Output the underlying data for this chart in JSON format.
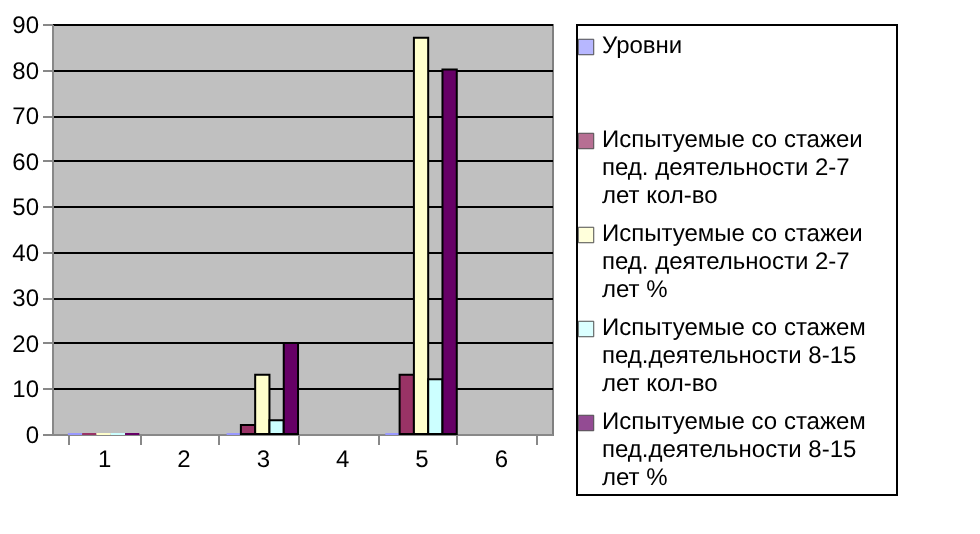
{
  "chart_data": {
    "type": "bar",
    "categories": [
      "1",
      "2",
      "3",
      "4",
      "5",
      "6"
    ],
    "series": [
      {
        "name": "Уровни",
        "color": "#9999ff",
        "values": [
          0,
          null,
          0,
          null,
          0,
          null
        ]
      },
      {
        "name": "Испытуемые со стажеи пед. деятельности 2-7 лет кол-во",
        "color": "#993366",
        "values": [
          0,
          null,
          2,
          null,
          13,
          null
        ]
      },
      {
        "name": "Испытуемые со стажеи пед. деятельности 2-7 лет %",
        "color": "#ffffcc",
        "values": [
          0,
          null,
          13,
          null,
          87,
          null
        ]
      },
      {
        "name": "Испытуемые со стажем пед.деятельности 8-15 лет кол-во",
        "color": "#ccffff",
        "values": [
          0,
          null,
          3,
          null,
          12,
          null
        ]
      },
      {
        "name": "Испытуемые со стажем пед.деятельности 8-15 лет %",
        "color": "#660066",
        "values": [
          0,
          null,
          20,
          null,
          80,
          null
        ]
      }
    ],
    "ylim": [
      0,
      90
    ],
    "yticks": [
      0,
      10,
      20,
      30,
      40,
      50,
      60,
      70,
      80,
      90
    ],
    "grid": "y",
    "legend": "right"
  }
}
